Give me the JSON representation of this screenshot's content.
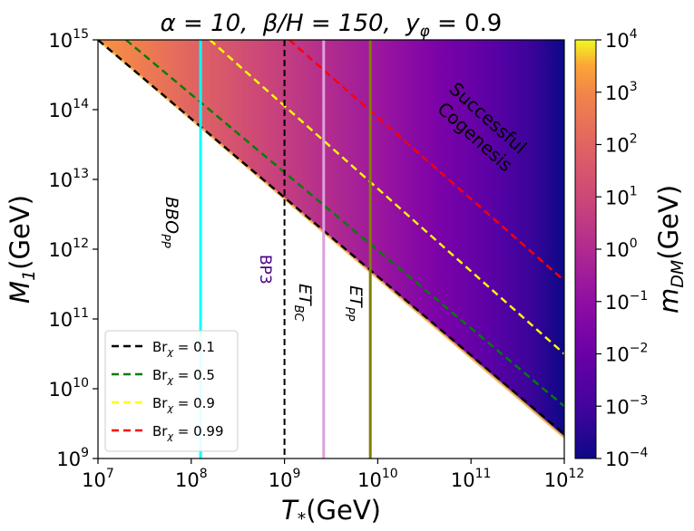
{
  "chart_data": {
    "type": "heatmap",
    "title": "α = 10,  β/H = 150,  y_φ = 0.9",
    "title_parts": {
      "alpha": "α = 10,",
      "beta": "β/H = 150,",
      "y": "y",
      "y_sub": "φ",
      "y_val": " = 0.9"
    },
    "xlabel": "T",
    "xlabel_sub": "*",
    "xlabel_unit": "(GeV)",
    "ylabel": "M",
    "ylabel_sub": "1",
    "ylabel_unit": "(GeV)",
    "x_scale": "log",
    "y_scale": "log",
    "xlim_log10": [
      7,
      12
    ],
    "ylim_log10": [
      9,
      15
    ],
    "x_ticks": [
      {
        "base": "10",
        "exp": "7"
      },
      {
        "base": "10",
        "exp": "8"
      },
      {
        "base": "10",
        "exp": "9"
      },
      {
        "base": "10",
        "exp": "10"
      },
      {
        "base": "10",
        "exp": "11"
      },
      {
        "base": "10",
        "exp": "12"
      }
    ],
    "y_ticks": [
      {
        "base": "10",
        "exp": "9"
      },
      {
        "base": "10",
        "exp": "10"
      },
      {
        "base": "10",
        "exp": "11"
      },
      {
        "base": "10",
        "exp": "12"
      },
      {
        "base": "10",
        "exp": "13"
      },
      {
        "base": "10",
        "exp": "14"
      },
      {
        "base": "10",
        "exp": "15"
      }
    ],
    "colorbar": {
      "label": "m",
      "label_sub": "DM",
      "label_unit": "(GeV)",
      "scale": "log",
      "range_log10": [
        -4,
        4
      ],
      "colormap": "plasma",
      "ticks": [
        {
          "base": "10",
          "exp": "4"
        },
        {
          "base": "10",
          "exp": "3"
        },
        {
          "base": "10",
          "exp": "2"
        },
        {
          "base": "10",
          "exp": "1"
        },
        {
          "base": "10",
          "exp": "0"
        },
        {
          "base": "10",
          "exp": "−1"
        },
        {
          "base": "10",
          "exp": "−2"
        },
        {
          "base": "10",
          "exp": "−3"
        },
        {
          "base": "10",
          "exp": "−4"
        }
      ]
    },
    "allowed_region": {
      "lower_boundary_log10": [
        [
          7,
          15
        ],
        [
          12,
          9.3
        ]
      ],
      "note": "region above the diagonal boundary is filled by the colormap"
    },
    "diagonal_lines": [
      {
        "name": "Br_χ = 0.1",
        "label_main": "Br",
        "label_sub": "χ",
        "label_val": " = 0.1",
        "color": "#000000",
        "points_log10": [
          [
            7,
            15
          ],
          [
            12,
            9.35
          ]
        ]
      },
      {
        "name": "Br_χ = 0.5",
        "label_main": "Br",
        "label_sub": "χ",
        "label_val": " = 0.5",
        "color": "#007f00",
        "points_log10": [
          [
            7.3,
            15
          ],
          [
            12,
            9.75
          ]
        ]
      },
      {
        "name": "Br_χ = 0.9",
        "label_main": "Br",
        "label_sub": "χ",
        "label_val": " = 0.9",
        "color": "#ffff00",
        "points_log10": [
          [
            8.2,
            15
          ],
          [
            12,
            10.5
          ]
        ]
      },
      {
        "name": "Br_χ = 0.99",
        "label_main": "Br",
        "label_sub": "χ",
        "label_val": " = 0.99",
        "color": "#ff0000",
        "points_log10": [
          [
            9.05,
            15
          ],
          [
            12,
            11.55
          ]
        ]
      }
    ],
    "vertical_lines": [
      {
        "id": "bbo",
        "log10_x": 8.1,
        "color": "#00ffff",
        "style": "solid"
      },
      {
        "id": "bp3",
        "log10_x": 9.0,
        "color": "#000000",
        "style": "dashed"
      },
      {
        "id": "etbc",
        "log10_x": 9.42,
        "color": "#dda0dd",
        "style": "solid"
      },
      {
        "id": "etpp",
        "log10_x": 9.92,
        "color": "#808000",
        "style": "solid"
      }
    ],
    "annotations": [
      {
        "id": "bbo",
        "main": "BBO",
        "sub": "PP",
        "color": "#000000"
      },
      {
        "id": "bp3",
        "main": "BP3",
        "sub": "",
        "color": "#4b0082"
      },
      {
        "id": "etbc",
        "main": "ET",
        "sub": "BC",
        "color": "#000000"
      },
      {
        "id": "etpp",
        "main": "ET",
        "sub": "PP",
        "color": "#000000"
      },
      {
        "id": "region",
        "line1": "Successful",
        "line2": "Cogenesis",
        "color": "#000000"
      }
    ],
    "legend": {
      "placement": "lower-left"
    }
  }
}
